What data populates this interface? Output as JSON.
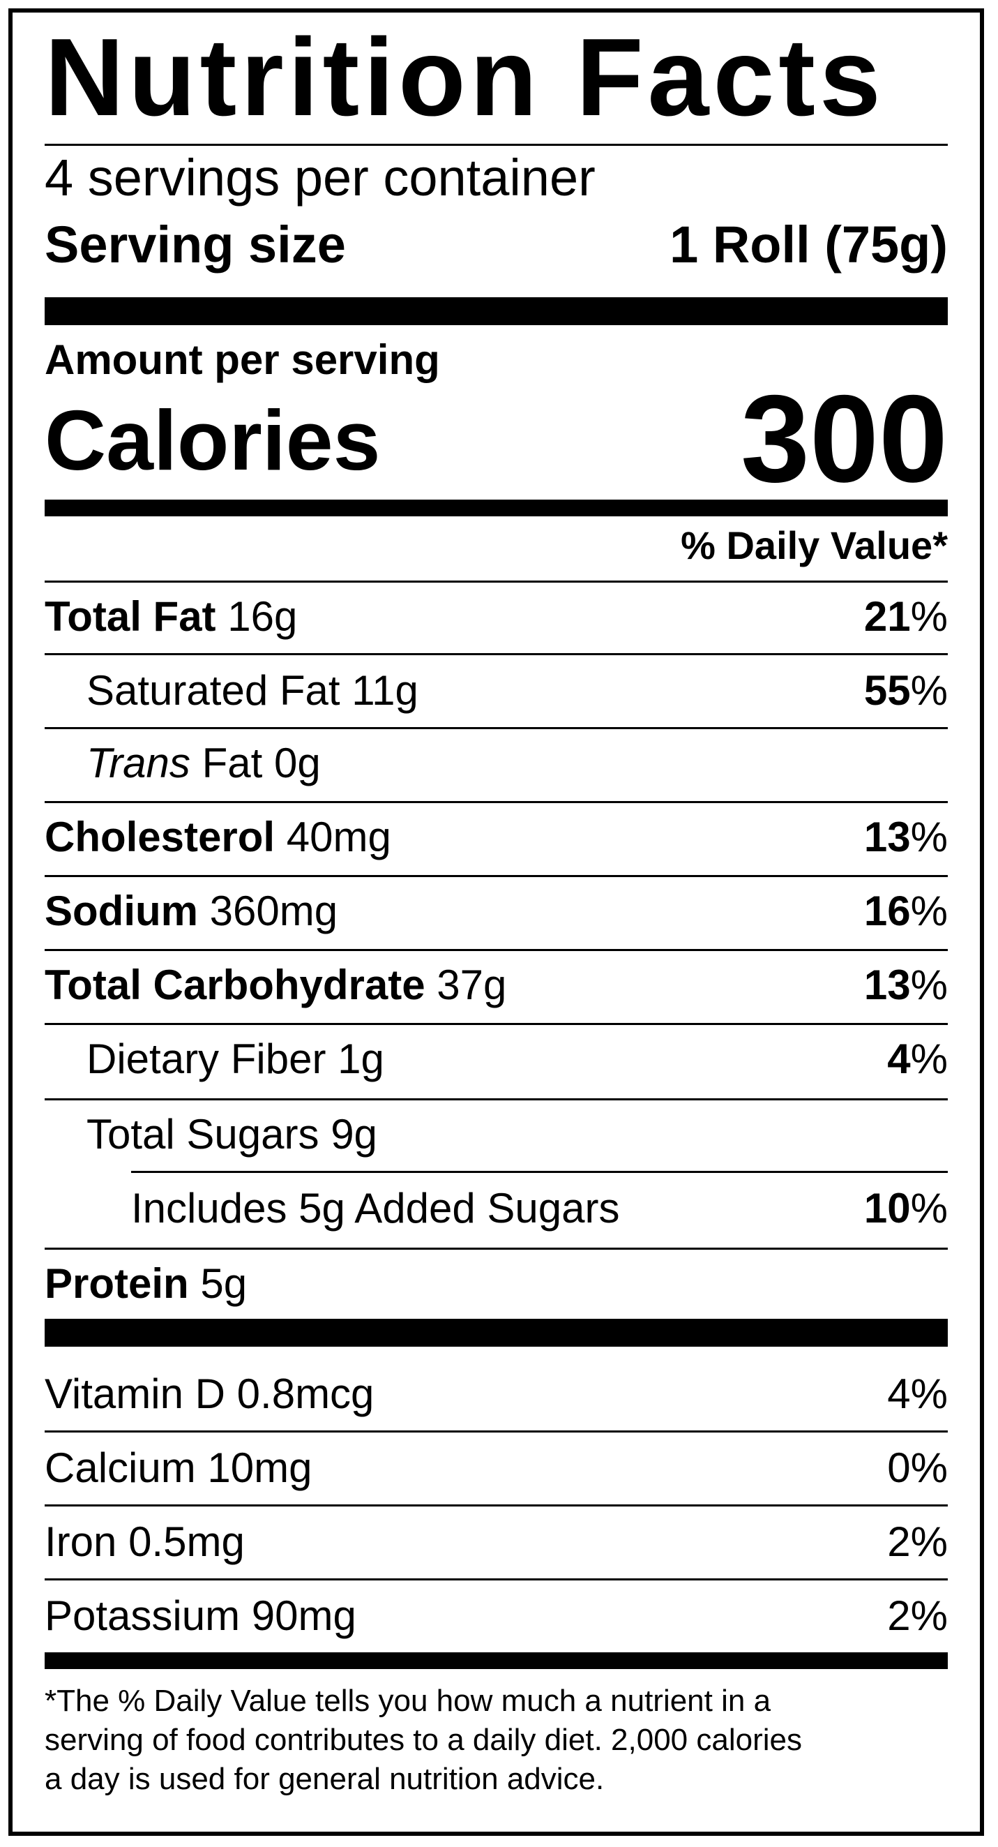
{
  "title": "Nutrition Facts",
  "servings_per_container": "4 servings per container",
  "serving_size_label": "Serving size",
  "serving_size_value": "1 Roll (75g)",
  "amount_per_serving": "Amount per serving",
  "calories_label": "Calories",
  "calories_value": "300",
  "daily_value_header": "% Daily Value*",
  "nutrients": {
    "total_fat": {
      "name": "Total Fat",
      "amount": "16g",
      "dv_number": "21",
      "dv_sign": "%"
    },
    "saturated_fat": {
      "name": "Saturated Fat",
      "amount": "11g",
      "dv_number": "55",
      "dv_sign": "%"
    },
    "trans_fat": {
      "name_italic": "Trans",
      "name_rest": "Fat",
      "amount": "0g"
    },
    "cholesterol": {
      "name": "Cholesterol",
      "amount": "40mg",
      "dv_number": "13",
      "dv_sign": "%"
    },
    "sodium": {
      "name": "Sodium",
      "amount": "360mg",
      "dv_number": "16",
      "dv_sign": "%"
    },
    "total_carbohydrate": {
      "name": "Total Carbohydrate",
      "amount": "37g",
      "dv_number": "13",
      "dv_sign": "%"
    },
    "dietary_fiber": {
      "name": "Dietary Fiber",
      "amount": "1g",
      "dv_number": "4",
      "dv_sign": "%"
    },
    "total_sugars": {
      "name": "Total Sugars",
      "amount": "9g"
    },
    "added_sugars": {
      "text": "Includes 5g Added Sugars",
      "dv_number": "10",
      "dv_sign": "%"
    },
    "protein": {
      "name": "Protein",
      "amount": "5g"
    }
  },
  "vitamins": [
    {
      "name": "Vitamin D",
      "amount": "0.8mcg",
      "dv": "4%"
    },
    {
      "name": "Calcium",
      "amount": "10mg",
      "dv": "0%"
    },
    {
      "name": "Iron",
      "amount": "0.5mg",
      "dv": "2%"
    },
    {
      "name": "Potassium",
      "amount": "90mg",
      "dv": "2%"
    }
  ],
  "footnote_lines": [
    "*The % Daily Value tells you how much a nutrient in a",
    "serving of food contributes to a daily diet. 2,000 calories",
    "a day is used for general nutrition advice."
  ]
}
